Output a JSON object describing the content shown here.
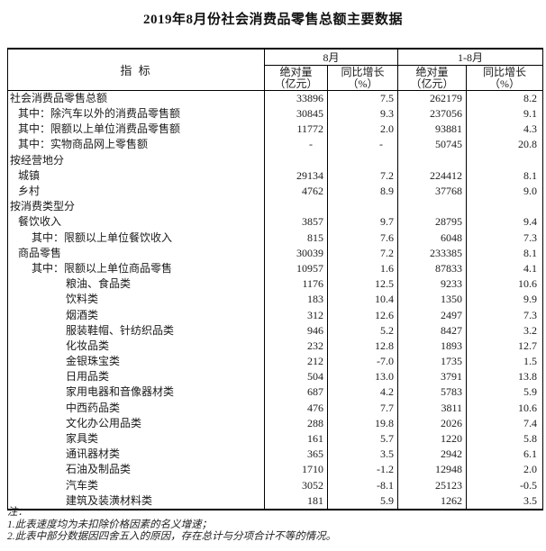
{
  "title": "2019年8月份社会消费品零售总额主要数据",
  "table": {
    "indicator_header": "指  标",
    "col_groups": [
      {
        "label": "8月",
        "subcols": [
          {
            "line1": "绝对量",
            "line2": "（亿元）"
          },
          {
            "line1": "同比增长",
            "line2": "（%）"
          }
        ]
      },
      {
        "label": "1-8月",
        "subcols": [
          {
            "line1": "绝对量",
            "line2": "（亿元）"
          },
          {
            "line1": "同比增长",
            "line2": "（%）"
          }
        ]
      }
    ],
    "rows": [
      {
        "label": "社会消费品零售总额",
        "indent": 0,
        "values": [
          "33896",
          "7.5",
          "262179",
          "8.2"
        ]
      },
      {
        "label": "其中：除汽车以外的消费品零售额",
        "indent": 1,
        "values": [
          "30845",
          "9.3",
          "237056",
          "9.1"
        ]
      },
      {
        "label": "其中：限额以上单位消费品零售额",
        "indent": 1,
        "values": [
          "11772",
          "2.0",
          "93881",
          "4.3"
        ]
      },
      {
        "label": "其中：实物商品网上零售额",
        "indent": 1,
        "values": [
          "-",
          "-",
          "50745",
          "20.8"
        ]
      },
      {
        "label": "按经营地分",
        "indent": 0,
        "values": [
          "",
          "",
          "",
          ""
        ]
      },
      {
        "label": "城镇",
        "indent": 1,
        "values": [
          "29134",
          "7.2",
          "224412",
          "8.1"
        ]
      },
      {
        "label": "乡村",
        "indent": 1,
        "values": [
          "4762",
          "8.9",
          "37768",
          "9.0"
        ]
      },
      {
        "label": "按消费类型分",
        "indent": 0,
        "values": [
          "",
          "",
          "",
          ""
        ]
      },
      {
        "label": "餐饮收入",
        "indent": 1,
        "values": [
          "3857",
          "9.7",
          "28795",
          "9.4"
        ]
      },
      {
        "label": "其中：限额以上单位餐饮收入",
        "indent": 2,
        "values": [
          "815",
          "7.6",
          "6048",
          "7.3"
        ]
      },
      {
        "label": "商品零售",
        "indent": 1,
        "values": [
          "30039",
          "7.2",
          "233385",
          "8.1"
        ]
      },
      {
        "label": "其中：限额以上单位商品零售",
        "indent": 2,
        "values": [
          "10957",
          "1.6",
          "87833",
          "4.1"
        ]
      },
      {
        "label": "粮油、食品类",
        "indent": 3,
        "values": [
          "1176",
          "12.5",
          "9233",
          "10.6"
        ]
      },
      {
        "label": "饮料类",
        "indent": 3,
        "values": [
          "183",
          "10.4",
          "1350",
          "9.9"
        ]
      },
      {
        "label": "烟酒类",
        "indent": 3,
        "values": [
          "312",
          "12.6",
          "2497",
          "7.3"
        ]
      },
      {
        "label": "服装鞋帽、针纺织品类",
        "indent": 3,
        "values": [
          "946",
          "5.2",
          "8427",
          "3.2"
        ]
      },
      {
        "label": "化妆品类",
        "indent": 3,
        "values": [
          "232",
          "12.8",
          "1893",
          "12.7"
        ]
      },
      {
        "label": "金银珠宝类",
        "indent": 3,
        "values": [
          "212",
          "-7.0",
          "1735",
          "1.5"
        ]
      },
      {
        "label": "日用品类",
        "indent": 3,
        "values": [
          "504",
          "13.0",
          "3791",
          "13.8"
        ]
      },
      {
        "label": "家用电器和音像器材类",
        "indent": 3,
        "values": [
          "687",
          "4.2",
          "5783",
          "5.9"
        ]
      },
      {
        "label": "中西药品类",
        "indent": 3,
        "values": [
          "476",
          "7.7",
          "3811",
          "10.6"
        ]
      },
      {
        "label": "文化办公用品类",
        "indent": 3,
        "values": [
          "288",
          "19.8",
          "2026",
          "7.4"
        ]
      },
      {
        "label": "家具类",
        "indent": 3,
        "values": [
          "161",
          "5.7",
          "1220",
          "5.8"
        ]
      },
      {
        "label": "通讯器材类",
        "indent": 3,
        "values": [
          "365",
          "3.5",
          "2942",
          "6.1"
        ]
      },
      {
        "label": "石油及制品类",
        "indent": 3,
        "values": [
          "1710",
          "-1.2",
          "12948",
          "2.0"
        ]
      },
      {
        "label": "汽车类",
        "indent": 3,
        "values": [
          "3052",
          "-8.1",
          "25123",
          "-0.5"
        ]
      },
      {
        "label": "建筑及装潢材料类",
        "indent": 3,
        "values": [
          "181",
          "5.9",
          "1262",
          "3.5"
        ]
      }
    ]
  },
  "notes": {
    "label": "注：",
    "items": [
      "1.此表速度均为未扣除价格因素的名义增速；",
      "2.此表中部分数据因四舍五入的原因，存在总计与分项合计不等的情况。"
    ]
  }
}
